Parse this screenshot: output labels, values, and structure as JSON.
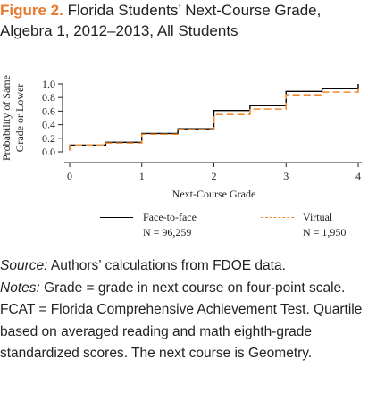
{
  "figure": {
    "label": "Figure 2.",
    "title": "Florida Students’ Next-Course Grade, Algebra 1, 2012–2013, All Students"
  },
  "chart_data": {
    "type": "line",
    "step": true,
    "xlabel": "Next-Course Grade",
    "ylabel_lines": [
      "Probability of Same",
      "Grade or Lower"
    ],
    "xlim": [
      0,
      4
    ],
    "ylim": [
      0,
      1
    ],
    "x_ticks": [
      0,
      1,
      2,
      3,
      4
    ],
    "x_tick_labels": [
      "0",
      "1",
      "2",
      "3",
      "4"
    ],
    "y_ticks": [
      0,
      0.2,
      0.4,
      0.6,
      0.8,
      1.0
    ],
    "y_tick_labels": [
      "0.0",
      "0.2",
      "0.4",
      "0.6",
      "0.8",
      "1.0"
    ],
    "grid": false,
    "series": [
      {
        "name": "Face-to-face",
        "n_label": "N = 96,259",
        "color": "#000000",
        "dash": "solid",
        "x": [
          0,
          0.5,
          1,
          1.5,
          2,
          2.5,
          3,
          3.5,
          4
        ],
        "y": [
          0.1,
          0.14,
          0.27,
          0.34,
          0.61,
          0.68,
          0.89,
          0.93,
          1.0
        ]
      },
      {
        "name": "Virtual",
        "n_label": "N = 1,950",
        "color": "#f08a32",
        "dash": "dashed",
        "x": [
          0,
          0.5,
          1,
          1.5,
          2,
          2.5,
          3,
          3.5,
          4
        ],
        "y": [
          0.1,
          0.13,
          0.26,
          0.33,
          0.55,
          0.63,
          0.84,
          0.88,
          0.93
        ]
      }
    ],
    "legend": {
      "placement": "bottom",
      "entries": [
        {
          "name": "Face-to-face",
          "n_label": "N = 96,259"
        },
        {
          "name": "Virtual",
          "n_label": "N = 1,950"
        }
      ]
    }
  },
  "notes": {
    "source_label": "Source:",
    "source_text": " Authors’ calculations from FDOE data.",
    "notes_label": "Notes:",
    "notes_text": " Grade = grade in next course on four-point scale. FCAT = Florida Comprehensive Achievement Test. Quartile based on averaged reading and math eighth-grade standardized scores. The next course is Geometry."
  }
}
